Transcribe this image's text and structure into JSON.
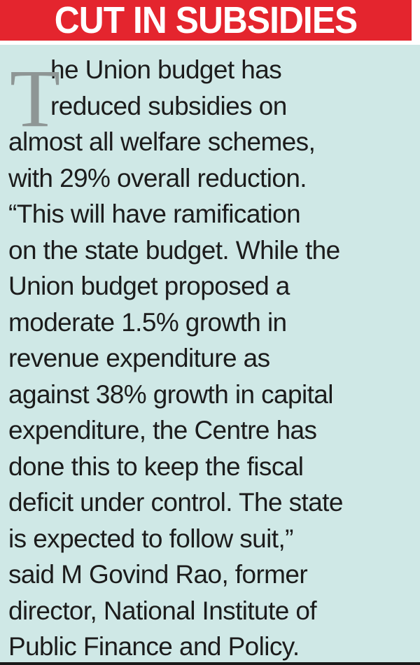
{
  "headline": "CUT IN SUBSIDIES",
  "drop_cap": "T",
  "body_lines": [
    "he Union budget has",
    "reduced subsidies on",
    "almost all welfare schemes,",
    "with 29% overall reduction.",
    "“This will have ramification",
    "on the state budget. While the",
    "Union budget proposed a",
    "moderate 1.5% growth in",
    "revenue expenditure as",
    "against 38% growth in capital",
    "expenditure, the Centre has",
    "done this to keep the fiscal",
    "deficit under control. The state",
    "is expected to follow suit,”",
    "said M Govind Rao, former",
    "director, National Institute of",
    "Public Finance and Policy."
  ],
  "colors": {
    "headline_background": "#e4252e",
    "panel_background": "#cfe8e6",
    "drop_cap": "#8e9695"
  }
}
